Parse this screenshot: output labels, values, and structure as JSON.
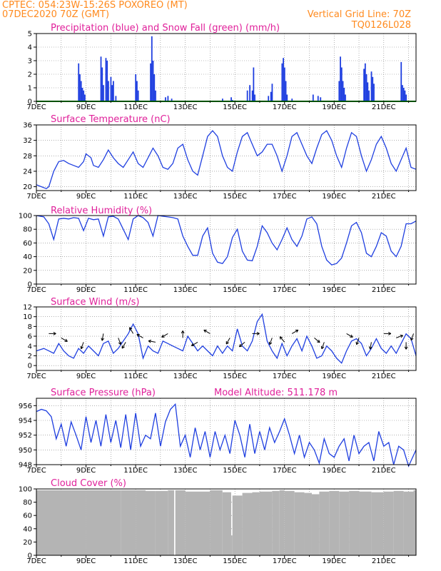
{
  "header": {
    "line1": "CPTEC:   054:23W-15:26S   POXOREO (MT)",
    "line2_left": "07DEC2020 70Z (GMT)",
    "line2_right": "Vertical Grid Line: 70Z",
    "line3_right": "TQ0126L028"
  },
  "x_labels": [
    "7DEC",
    "9DEC",
    "11DEC",
    "13DEC",
    "15DEC",
    "17DEC",
    "19DEC",
    "21DEC"
  ],
  "colors": {
    "title": "#e0209a",
    "header": "#ff8a1e",
    "line": "#1f3fe0",
    "snow": "#00a000",
    "cloud": "#b4b4b4",
    "grid": "#808080"
  },
  "chart_data": [
    {
      "type": "bar",
      "title": "Precipitation (blue) and Snow Fall (green) (mm/h)",
      "ylim": [
        0,
        5
      ],
      "yticks": [
        0,
        1,
        2,
        3,
        4,
        5
      ],
      "x_range_days": [
        7,
        22.3
      ],
      "series": [
        {
          "name": "Precipitation",
          "x": [
            8.7,
            8.75,
            8.8,
            8.85,
            8.9,
            8.95,
            9.6,
            9.65,
            9.7,
            9.8,
            9.85,
            9.9,
            10.0,
            10.05,
            10.1,
            10.2,
            11.0,
            11.05,
            11.1,
            11.6,
            11.65,
            11.7,
            11.75,
            11.8,
            12.2,
            12.3,
            12.45,
            14.5,
            14.85,
            14.9,
            15.5,
            15.6,
            15.7,
            15.75,
            15.8,
            16.35,
            16.45,
            16.5,
            16.9,
            16.95,
            17.0,
            17.05,
            17.1,
            17.3,
            18.15,
            18.35,
            18.45,
            19.2,
            19.25,
            19.3,
            19.35,
            19.4,
            19.45,
            20.2,
            20.25,
            20.3,
            20.35,
            20.4,
            20.5,
            20.55,
            20.6,
            21.7,
            21.75,
            21.8,
            21.85,
            21.9
          ],
          "values": [
            2.8,
            2.0,
            1.5,
            1.0,
            0.8,
            0.5,
            3.3,
            2.5,
            1.2,
            3.2,
            3.0,
            1.5,
            1.8,
            1.2,
            1.5,
            0.4,
            2.0,
            1.5,
            0.8,
            2.8,
            4.8,
            3.0,
            2.0,
            0.8,
            0.3,
            0.4,
            0.2,
            0.2,
            0.3,
            0.1,
            0.8,
            1.2,
            0.8,
            2.5,
            0.5,
            0.4,
            0.7,
            1.3,
            2.8,
            3.2,
            2.5,
            1.5,
            0.5,
            0.2,
            0.5,
            0.4,
            0.3,
            1.5,
            3.3,
            2.5,
            1.5,
            1.0,
            0.5,
            2.4,
            2.8,
            2.0,
            1.4,
            0.8,
            2.2,
            1.8,
            1.3,
            2.9,
            1.2,
            1.0,
            0.8,
            0.5
          ]
        },
        {
          "name": "Snow Fall",
          "x": [
            7,
            22.3
          ],
          "values": [
            0,
            0
          ]
        }
      ]
    },
    {
      "type": "line",
      "title": "Surface Temperature (nC)",
      "ylim": [
        19,
        36
      ],
      "yticks": [
        20,
        24,
        28,
        32,
        36
      ],
      "series": [
        {
          "name": "Temperature",
          "x": [
            7,
            7.2,
            7.4,
            7.5,
            7.7,
            7.9,
            8.1,
            8.3,
            8.5,
            8.7,
            8.9,
            9.0,
            9.2,
            9.3,
            9.5,
            9.7,
            9.9,
            10.1,
            10.3,
            10.5,
            10.7,
            10.9,
            11.1,
            11.3,
            11.5,
            11.7,
            11.9,
            12.1,
            12.3,
            12.5,
            12.7,
            12.9,
            13.1,
            13.3,
            13.5,
            13.7,
            13.9,
            14.1,
            14.3,
            14.5,
            14.7,
            14.9,
            15.1,
            15.3,
            15.5,
            15.7,
            15.9,
            16.1,
            16.3,
            16.5,
            16.7,
            16.9,
            17.1,
            17.3,
            17.5,
            17.7,
            17.9,
            18.1,
            18.3,
            18.5,
            18.7,
            18.9,
            19.1,
            19.3,
            19.5,
            19.7,
            19.9,
            20.1,
            20.3,
            20.5,
            20.7,
            20.9,
            21.1,
            21.3,
            21.5,
            21.7,
            21.9,
            22.1,
            22.3
          ],
          "values": [
            20.5,
            20,
            19.5,
            20,
            24,
            26.5,
            26.8,
            26,
            25.5,
            25,
            26.5,
            28.5,
            27.5,
            25.5,
            25,
            27,
            29.5,
            27.5,
            26,
            25,
            27,
            29,
            26,
            25,
            27.5,
            30,
            28,
            25,
            24.5,
            26,
            30,
            31,
            27,
            24,
            23,
            28,
            33,
            34.5,
            33,
            28,
            25,
            24,
            29,
            33,
            34,
            31,
            28,
            29,
            31,
            31,
            28,
            24,
            28,
            33,
            34,
            31,
            28,
            26,
            30,
            33.5,
            34.5,
            32,
            28,
            25,
            30,
            34,
            33,
            28,
            24,
            27,
            31,
            33,
            30,
            26,
            24,
            27,
            30,
            25,
            24.5
          ]
        }
      ]
    },
    {
      "type": "line",
      "title": "Relative Humidity (%)",
      "ylim": [
        0,
        100
      ],
      "yticks": [
        0,
        20,
        40,
        60,
        80,
        100
      ],
      "series": [
        {
          "name": "Humidity",
          "x": [
            7,
            7.3,
            7.5,
            7.7,
            7.9,
            8.1,
            8.3,
            8.5,
            8.7,
            8.9,
            9.1,
            9.3,
            9.5,
            9.7,
            9.9,
            10.1,
            10.3,
            10.5,
            10.7,
            10.9,
            11.1,
            11.3,
            11.5,
            11.7,
            11.9,
            12.1,
            12.3,
            12.5,
            12.7,
            12.9,
            13.1,
            13.3,
            13.5,
            13.7,
            13.9,
            14.1,
            14.3,
            14.5,
            14.7,
            14.9,
            15.1,
            15.3,
            15.5,
            15.7,
            15.9,
            16.1,
            16.3,
            16.5,
            16.7,
            16.9,
            17.1,
            17.3,
            17.5,
            17.7,
            17.9,
            18.1,
            18.3,
            18.5,
            18.7,
            18.9,
            19.1,
            19.3,
            19.5,
            19.7,
            19.9,
            20.1,
            20.3,
            20.5,
            20.7,
            20.9,
            21.1,
            21.3,
            21.5,
            21.7,
            21.9,
            22.1,
            22.3
          ],
          "values": [
            100,
            98,
            88,
            65,
            95,
            96,
            95,
            97,
            96,
            78,
            96,
            94,
            95,
            70,
            98,
            99,
            95,
            80,
            65,
            95,
            100,
            97,
            90,
            70,
            100,
            99,
            98,
            97,
            95,
            70,
            55,
            42,
            42,
            70,
            82,
            45,
            32,
            30,
            40,
            68,
            80,
            48,
            35,
            34,
            55,
            85,
            75,
            60,
            50,
            65,
            82,
            65,
            55,
            70,
            95,
            98,
            88,
            55,
            35,
            28,
            30,
            38,
            60,
            85,
            90,
            75,
            45,
            40,
            55,
            75,
            70,
            48,
            40,
            55,
            88,
            88,
            92
          ]
        }
      ]
    },
    {
      "type": "line",
      "title": "Surface Wind (m/s)",
      "ylim": [
        -1,
        12
      ],
      "yticks": [
        0,
        2,
        4,
        6,
        8,
        10,
        12
      ],
      "series": [
        {
          "name": "Wind speed",
          "x": [
            7,
            7.3,
            7.5,
            7.7,
            7.9,
            8.1,
            8.3,
            8.5,
            8.7,
            8.9,
            9.1,
            9.3,
            9.5,
            9.7,
            9.9,
            10.1,
            10.3,
            10.5,
            10.7,
            10.9,
            11.1,
            11.3,
            11.5,
            11.7,
            11.9,
            12.1,
            12.3,
            12.5,
            12.7,
            12.9,
            13.1,
            13.3,
            13.5,
            13.7,
            13.9,
            14.1,
            14.3,
            14.5,
            14.7,
            14.9,
            15.1,
            15.3,
            15.5,
            15.7,
            15.9,
            16.1,
            16.3,
            16.5,
            16.7,
            16.9,
            17.1,
            17.3,
            17.5,
            17.7,
            17.9,
            18.1,
            18.3,
            18.5,
            18.7,
            18.9,
            19.1,
            19.3,
            19.5,
            19.7,
            19.9,
            20.1,
            20.3,
            20.5,
            20.7,
            20.9,
            21.1,
            21.3,
            21.5,
            21.7,
            21.9,
            22.1,
            22.3
          ],
          "values": [
            3,
            3.5,
            3,
            2.5,
            4.5,
            3,
            2,
            1.5,
            3.5,
            2.5,
            4,
            3,
            2,
            4.5,
            5,
            2.5,
            3.5,
            5,
            6.5,
            8.5,
            6.5,
            1.5,
            4,
            3,
            2.5,
            5,
            4.5,
            4,
            3.5,
            3,
            6,
            4.5,
            3,
            4,
            3,
            2,
            4,
            2.5,
            4,
            3,
            7.5,
            4,
            3,
            5,
            9,
            10.5,
            5,
            3,
            1.5,
            4.5,
            2,
            4,
            5.5,
            3,
            6,
            4,
            1.5,
            2,
            4,
            3,
            1.5,
            0.5,
            3,
            5,
            5.5,
            4.5,
            2,
            3.5,
            5.5,
            3.5,
            2.5,
            4,
            2.5,
            4.5,
            6.5,
            5.5,
            2
          ]
        },
        {
          "name": "Wind direction (deg)",
          "x": [
            7.5,
            8.0,
            8.9,
            9.7,
            10.3,
            10.6,
            10.9,
            11.3,
            11.8,
            12.3,
            12.9,
            13.5,
            14.0,
            14.8,
            15.4,
            15.7,
            16.5,
            17.0,
            17.3,
            18.2,
            18.6,
            19.5,
            20.0,
            20.5,
            21.0,
            21.5,
            21.9,
            22.2
          ],
          "values": [
            90,
            120,
            200,
            190,
            160,
            210,
            330,
            300,
            280,
            240,
            0,
            240,
            300,
            210,
            230,
            90,
            200,
            320,
            60,
            130,
            200,
            120,
            200,
            190,
            90,
            70,
            180,
            200
          ]
        }
      ]
    },
    {
      "type": "line",
      "title": "Surface Pressure (hPa)",
      "subtitle": "Model Altitude: 511.178 m",
      "ylim": [
        948,
        957
      ],
      "yticks": [
        948,
        950,
        952,
        954,
        956
      ],
      "series": [
        {
          "name": "Pressure",
          "x": [
            7,
            7.2,
            7.4,
            7.6,
            7.8,
            8.0,
            8.2,
            8.4,
            8.6,
            8.8,
            9.0,
            9.2,
            9.4,
            9.6,
            9.8,
            10.0,
            10.2,
            10.4,
            10.6,
            10.8,
            11.0,
            11.2,
            11.4,
            11.6,
            11.8,
            12.0,
            12.2,
            12.4,
            12.6,
            12.8,
            13.0,
            13.2,
            13.4,
            13.6,
            13.8,
            14.0,
            14.2,
            14.4,
            14.6,
            14.8,
            15.0,
            15.2,
            15.4,
            15.6,
            15.8,
            16.0,
            16.2,
            16.4,
            16.6,
            16.8,
            17.0,
            17.2,
            17.4,
            17.6,
            17.8,
            18.0,
            18.2,
            18.4,
            18.6,
            18.8,
            19.0,
            19.2,
            19.4,
            19.6,
            19.8,
            20.0,
            20.2,
            20.4,
            20.6,
            20.8,
            21.0,
            21.2,
            21.4,
            21.6,
            21.8,
            22.0,
            22.3
          ],
          "values": [
            955.2,
            955.5,
            955.3,
            954.5,
            951.5,
            953.5,
            950.5,
            953.8,
            952,
            950,
            954.5,
            951,
            954,
            950.5,
            954.8,
            951,
            954,
            950.3,
            954.8,
            950,
            955,
            950.5,
            952,
            951.5,
            955,
            950.5,
            953.8,
            955.5,
            956.2,
            950.5,
            952,
            949,
            953,
            950,
            952.5,
            949,
            952.5,
            950,
            952,
            949.5,
            954,
            952,
            949,
            953.5,
            949.5,
            952.5,
            950,
            953,
            951,
            952.5,
            954.2,
            952,
            949.5,
            952,
            949,
            951,
            950,
            948.2,
            951.5,
            949.5,
            949,
            950.5,
            951.5,
            948.5,
            952,
            949.5,
            950.5,
            951,
            948.5,
            952.5,
            950.5,
            951,
            948,
            950.5,
            950,
            947.8,
            950
          ]
        }
      ]
    },
    {
      "type": "bar",
      "title": "Cloud Cover (%)",
      "ylim": [
        0,
        100
      ],
      "yticks": [
        0,
        20,
        40,
        60,
        80,
        100
      ],
      "series": [
        {
          "name": "Cloud Cover",
          "x": [
            7,
            9,
            10.4,
            11.0,
            11.4,
            11.8,
            12.3,
            12.55,
            12.6,
            13.0,
            14.0,
            14.5,
            14.85,
            14.9,
            15.3,
            15.7,
            16.0,
            16.5,
            16.8,
            17.0,
            17.4,
            17.8,
            18.1,
            18.4,
            18.8,
            19.2,
            19.6,
            20.0,
            20.5,
            21.0,
            21.4,
            21.8,
            22.2
          ],
          "values": [
            98,
            98,
            98,
            98,
            97,
            97,
            98,
            0,
            98,
            96,
            98,
            95,
            30,
            90,
            94,
            95,
            96,
            97,
            98,
            97,
            95,
            94,
            92,
            96,
            97,
            96,
            97,
            96,
            95,
            96,
            97,
            96,
            98
          ]
        }
      ]
    }
  ]
}
